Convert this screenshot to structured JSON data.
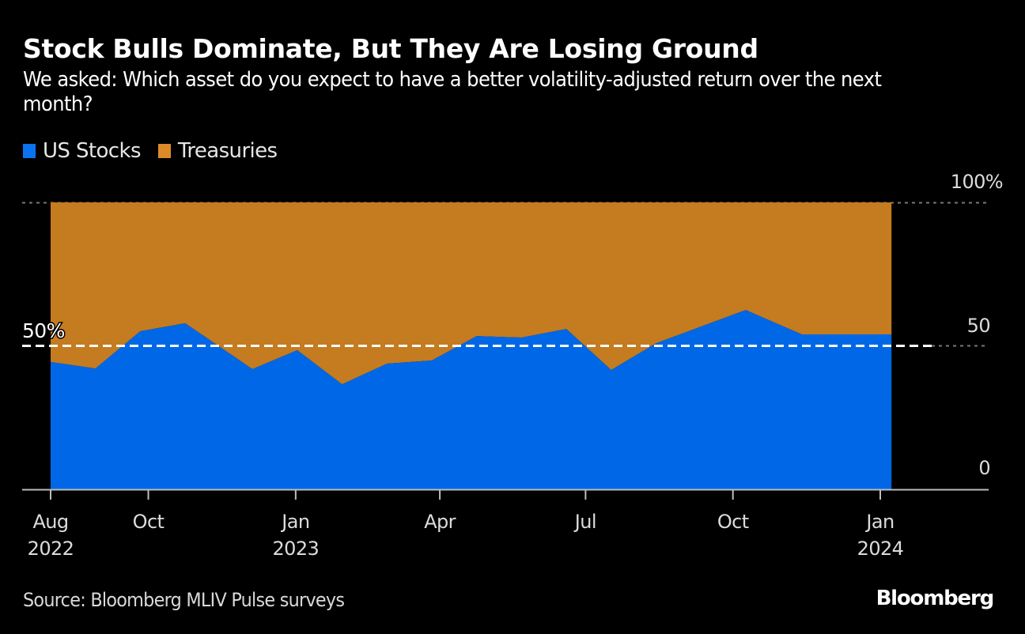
{
  "header": {
    "title": "Stock Bulls Dominate, But They Are Losing Ground",
    "subtitle": "We asked: Which asset do you expect to have a better volatility-adjusted return over the next month?"
  },
  "legend": [
    {
      "label": "US Stocks",
      "color": "#0068e6"
    },
    {
      "label": "Treasuries",
      "color": "#c77b22"
    }
  ],
  "footer": {
    "source": "Source: Bloomberg MLIV Pulse surveys",
    "logo": "Bloomberg"
  },
  "chart_data": {
    "type": "area",
    "stacked": true,
    "normalized": true,
    "title": "Stock Bulls Dominate, But They Are Losing Ground",
    "subtitle": "We asked: Which asset do you expect to have a better volatility-adjusted return over the next month?",
    "xlabel": "",
    "ylabel": "",
    "ylim": [
      0,
      100
    ],
    "y_ticks": [
      "0",
      "50",
      "100%"
    ],
    "reference_line": {
      "value": 50,
      "label": "50%",
      "style": "dashed",
      "color": "#ffffff"
    },
    "x_ticks": [
      {
        "month": "2022-08",
        "label": "Aug",
        "sublabel": "2022"
      },
      {
        "month": "2022-10",
        "label": "Oct",
        "sublabel": ""
      },
      {
        "month": "2023-01",
        "label": "Jan",
        "sublabel": "2023"
      },
      {
        "month": "2023-04",
        "label": "Apr",
        "sublabel": ""
      },
      {
        "month": "2023-07",
        "label": "Jul",
        "sublabel": ""
      },
      {
        "month": "2023-10",
        "label": "Oct",
        "sublabel": ""
      },
      {
        "month": "2024-01",
        "label": "Jan",
        "sublabel": "2024"
      }
    ],
    "x_range": [
      "2022-07-20",
      "2024-03-15"
    ],
    "x": [
      "2022-08-01",
      "2022-08-29",
      "2022-09-26",
      "2022-10-24",
      "2022-12-05",
      "2023-01-02",
      "2023-01-30",
      "2023-02-27",
      "2023-03-27",
      "2023-04-24",
      "2023-05-22",
      "2023-06-19",
      "2023-07-17",
      "2023-08-14",
      "2023-10-09",
      "2023-11-13",
      "2024-01-08"
    ],
    "series": [
      {
        "name": "US Stocks",
        "color": "#0068e6",
        "values": [
          44.4,
          42.1,
          55.1,
          57.9,
          41.9,
          48.5,
          36.6,
          43.8,
          44.9,
          53.4,
          52.9,
          55.9,
          41.6,
          50.9,
          62.5,
          54.0,
          54.0
        ]
      },
      {
        "name": "Treasuries",
        "color": "#c77b22",
        "values": [
          55.6,
          57.9,
          44.9,
          42.1,
          58.1,
          51.5,
          63.4,
          56.2,
          55.1,
          46.6,
          47.1,
          44.1,
          58.4,
          49.1,
          37.5,
          46.0,
          46.0
        ]
      }
    ],
    "grid": false,
    "legend_position": "top-left"
  }
}
